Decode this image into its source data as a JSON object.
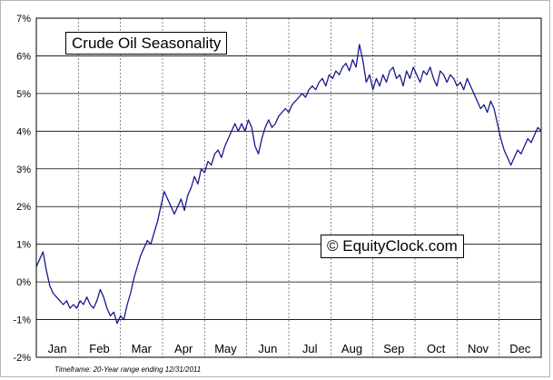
{
  "chart_data": {
    "type": "line",
    "title": "Crude Oil Seasonality",
    "watermark": "© EquityClock.com",
    "footnote": "Timeframe: 20-Year range ending 12/31/2011",
    "xlabel": "",
    "ylabel": "",
    "ylim": [
      -2,
      7
    ],
    "y_ticks": [
      "-2%",
      "-1%",
      "0%",
      "1%",
      "2%",
      "3%",
      "4%",
      "5%",
      "6%",
      "7%"
    ],
    "categories": [
      "Jan",
      "Feb",
      "Mar",
      "Apr",
      "May",
      "Jun",
      "Jul",
      "Aug",
      "Sep",
      "Oct",
      "Nov",
      "Dec"
    ],
    "grid": true,
    "line_color": "#1a1a8c",
    "series": [
      {
        "name": "",
        "points": [
          [
            1,
            0.4
          ],
          [
            2,
            0.6
          ],
          [
            3,
            0.8
          ],
          [
            4,
            0.3
          ],
          [
            5,
            -0.1
          ],
          [
            6,
            -0.3
          ],
          [
            7,
            -0.4
          ],
          [
            8,
            -0.5
          ],
          [
            9,
            -0.6
          ],
          [
            10,
            -0.5
          ],
          [
            11,
            -0.7
          ],
          [
            12,
            -0.6
          ],
          [
            13,
            -0.7
          ],
          [
            14,
            -0.5
          ],
          [
            15,
            -0.6
          ],
          [
            16,
            -0.4
          ],
          [
            17,
            -0.6
          ],
          [
            18,
            -0.7
          ],
          [
            19,
            -0.5
          ],
          [
            20,
            -0.2
          ],
          [
            21,
            -0.4
          ],
          [
            22,
            -0.7
          ],
          [
            23,
            -0.9
          ],
          [
            24,
            -0.8
          ],
          [
            25,
            -1.1
          ],
          [
            26,
            -0.9
          ],
          [
            27,
            -1.0
          ],
          [
            28,
            -0.6
          ],
          [
            29,
            -0.3
          ],
          [
            30,
            0.1
          ],
          [
            31,
            0.4
          ],
          [
            32,
            0.7
          ],
          [
            33,
            0.9
          ],
          [
            34,
            1.1
          ],
          [
            35,
            1.0
          ],
          [
            36,
            1.3
          ],
          [
            37,
            1.6
          ],
          [
            38,
            2.0
          ],
          [
            39,
            2.4
          ],
          [
            40,
            2.2
          ],
          [
            41,
            2.0
          ],
          [
            42,
            1.8
          ],
          [
            43,
            2.0
          ],
          [
            44,
            2.2
          ],
          [
            45,
            1.9
          ],
          [
            46,
            2.3
          ],
          [
            47,
            2.5
          ],
          [
            48,
            2.8
          ],
          [
            49,
            2.6
          ],
          [
            50,
            3.0
          ],
          [
            51,
            2.9
          ],
          [
            52,
            3.2
          ],
          [
            53,
            3.1
          ],
          [
            54,
            3.4
          ],
          [
            55,
            3.5
          ],
          [
            56,
            3.3
          ],
          [
            57,
            3.6
          ],
          [
            58,
            3.8
          ],
          [
            59,
            4.0
          ],
          [
            60,
            4.2
          ],
          [
            61,
            4.0
          ],
          [
            62,
            4.2
          ],
          [
            63,
            4.0
          ],
          [
            64,
            4.3
          ],
          [
            65,
            4.1
          ],
          [
            66,
            3.6
          ],
          [
            67,
            3.4
          ],
          [
            68,
            3.8
          ],
          [
            69,
            4.1
          ],
          [
            70,
            4.3
          ],
          [
            71,
            4.1
          ],
          [
            72,
            4.2
          ],
          [
            73,
            4.4
          ],
          [
            74,
            4.5
          ],
          [
            75,
            4.6
          ],
          [
            76,
            4.5
          ],
          [
            77,
            4.7
          ],
          [
            78,
            4.8
          ],
          [
            79,
            4.9
          ],
          [
            80,
            5.0
          ],
          [
            81,
            4.9
          ],
          [
            82,
            5.1
          ],
          [
            83,
            5.2
          ],
          [
            84,
            5.1
          ],
          [
            85,
            5.3
          ],
          [
            86,
            5.4
          ],
          [
            87,
            5.2
          ],
          [
            88,
            5.5
          ],
          [
            89,
            5.4
          ],
          [
            90,
            5.6
          ],
          [
            91,
            5.5
          ],
          [
            92,
            5.7
          ],
          [
            93,
            5.8
          ],
          [
            94,
            5.6
          ],
          [
            95,
            5.9
          ],
          [
            96,
            5.7
          ],
          [
            97,
            6.3
          ],
          [
            98,
            5.9
          ],
          [
            99,
            5.3
          ],
          [
            100,
            5.5
          ],
          [
            101,
            5.1
          ],
          [
            102,
            5.4
          ],
          [
            103,
            5.2
          ],
          [
            104,
            5.5
          ],
          [
            105,
            5.3
          ],
          [
            106,
            5.6
          ],
          [
            107,
            5.7
          ],
          [
            108,
            5.4
          ],
          [
            109,
            5.5
          ],
          [
            110,
            5.2
          ],
          [
            111,
            5.6
          ],
          [
            112,
            5.4
          ],
          [
            113,
            5.7
          ],
          [
            114,
            5.5
          ],
          [
            115,
            5.3
          ],
          [
            116,
            5.6
          ],
          [
            117,
            5.5
          ],
          [
            118,
            5.7
          ],
          [
            119,
            5.4
          ],
          [
            120,
            5.2
          ],
          [
            121,
            5.6
          ],
          [
            122,
            5.5
          ],
          [
            123,
            5.3
          ],
          [
            124,
            5.5
          ],
          [
            125,
            5.4
          ],
          [
            126,
            5.2
          ],
          [
            127,
            5.3
          ],
          [
            128,
            5.1
          ],
          [
            129,
            5.4
          ],
          [
            130,
            5.2
          ],
          [
            131,
            5.0
          ],
          [
            132,
            4.8
          ],
          [
            133,
            4.6
          ],
          [
            134,
            4.7
          ],
          [
            135,
            4.5
          ],
          [
            136,
            4.8
          ],
          [
            137,
            4.6
          ],
          [
            138,
            4.2
          ],
          [
            139,
            3.8
          ],
          [
            140,
            3.5
          ],
          [
            141,
            3.3
          ],
          [
            142,
            3.1
          ],
          [
            143,
            3.3
          ],
          [
            144,
            3.5
          ],
          [
            145,
            3.4
          ],
          [
            146,
            3.6
          ],
          [
            147,
            3.8
          ],
          [
            148,
            3.7
          ],
          [
            149,
            3.9
          ],
          [
            150,
            4.1
          ],
          [
            151,
            4.0
          ]
        ]
      }
    ]
  }
}
